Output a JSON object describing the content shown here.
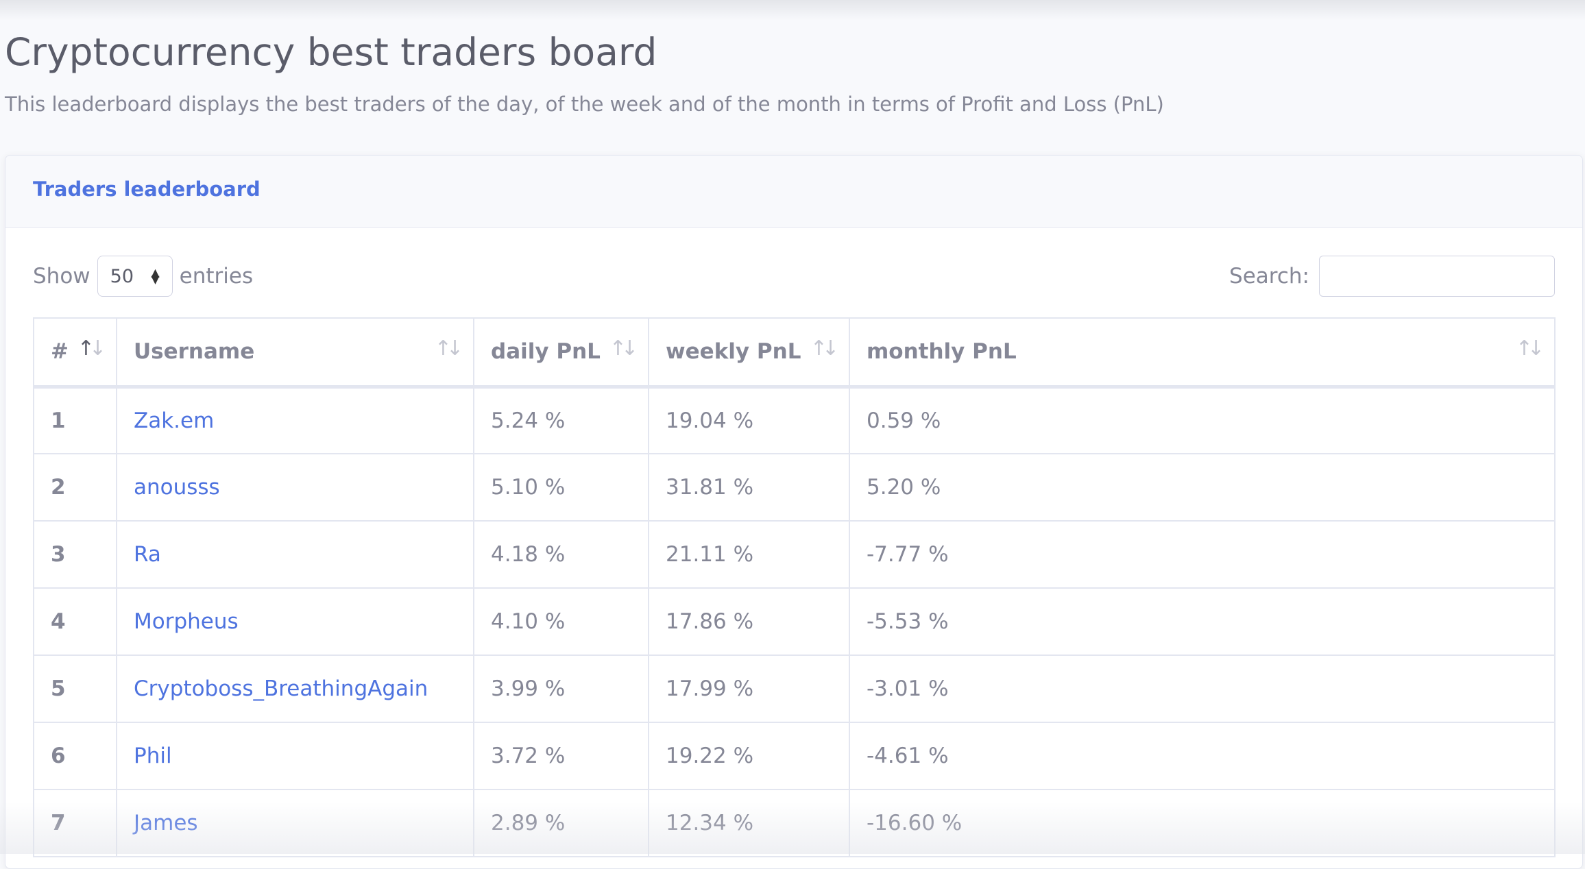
{
  "page": {
    "title": "Cryptocurrency best traders board",
    "subtitle": "This leaderboard displays the best traders of the day, of the week and of the month in terms of Profit and Loss (PnL)"
  },
  "card": {
    "title": "Traders leaderboard"
  },
  "controls": {
    "show_label": "Show",
    "entries_value": "50",
    "entries_label": "entries",
    "search_label": "Search:",
    "search_value": ""
  },
  "table": {
    "columns": [
      "#",
      "Username",
      "daily PnL",
      "weekly PnL",
      "monthly PnL"
    ],
    "rows": [
      {
        "rank": "1",
        "username": "Zak.em",
        "daily": "5.24 %",
        "weekly": "19.04 %",
        "monthly": "0.59 %"
      },
      {
        "rank": "2",
        "username": "anousss",
        "daily": "5.10 %",
        "weekly": "31.81 %",
        "monthly": "5.20 %"
      },
      {
        "rank": "3",
        "username": "Ra",
        "daily": "4.18 %",
        "weekly": "21.11 %",
        "monthly": "-7.77 %"
      },
      {
        "rank": "4",
        "username": "Morpheus",
        "daily": "4.10 %",
        "weekly": "17.86 %",
        "monthly": "-5.53 %"
      },
      {
        "rank": "5",
        "username": "Cryptoboss_BreathingAgain",
        "daily": "3.99 %",
        "weekly": "17.99 %",
        "monthly": "-3.01 %"
      },
      {
        "rank": "6",
        "username": "Phil",
        "daily": "3.72 %",
        "weekly": "19.22 %",
        "monthly": "-4.61 %"
      },
      {
        "rank": "7",
        "username": "James",
        "daily": "2.89 %",
        "weekly": "12.34 %",
        "monthly": "-16.60 %"
      }
    ]
  },
  "colors": {
    "accent": "#4e73df",
    "text": "#5a5c69",
    "muted": "#858796",
    "border": "#e3e6f0"
  },
  "icons": {
    "sort_asc_active": "sort-asc-icon",
    "sort_both": "sort-icon",
    "select_arrows": "chevron-updown-icon"
  }
}
